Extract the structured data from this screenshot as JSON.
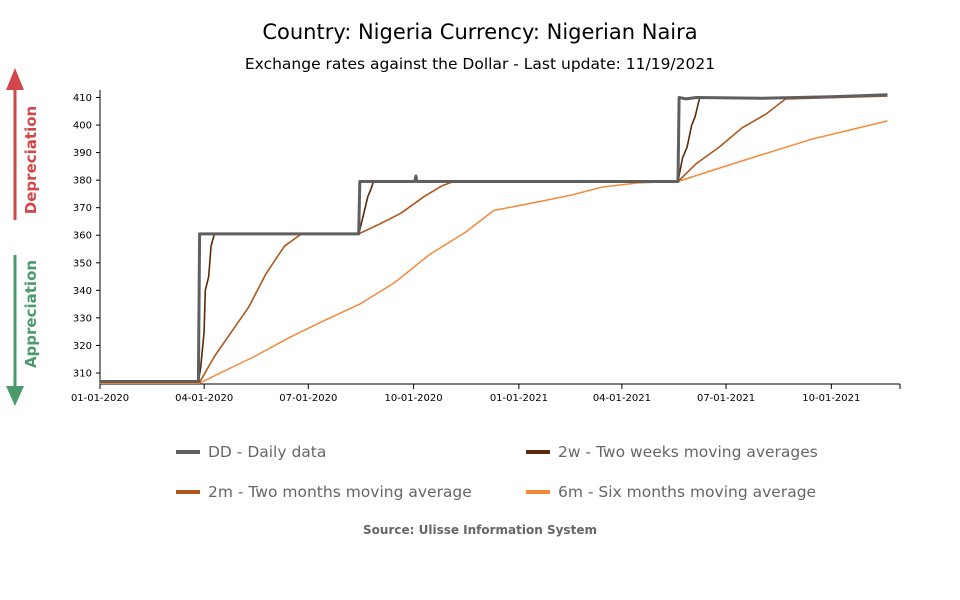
{
  "title": "Country: Nigeria Currency: Nigerian Naira",
  "subtitle": "Exchange rates against the Dollar - Last update: 11/19/2021",
  "side_labels": {
    "up": "Depreciation",
    "down": "Appreciation"
  },
  "colors": {
    "up": "#d2484a",
    "down": "#4a9a6c"
  },
  "source": "Source: Ulisse Information System",
  "legend": [
    {
      "label": "DD - Daily data",
      "color": "#5f5f5f"
    },
    {
      "label": "2w - Two weeks moving averages",
      "color": "#5a2a0a"
    },
    {
      "label": "2m - Two months moving average",
      "color": "#b0561c"
    },
    {
      "label": "6m - Six months moving average",
      "color": "#f5883a"
    }
  ],
  "chart_data": {
    "type": "line",
    "x_ticks": [
      "01-01-2020",
      "04-01-2020",
      "07-01-2020",
      "10-01-2020",
      "01-01-2021",
      "04-01-2021",
      "07-01-2021",
      "10-01-2021"
    ],
    "y_ticks": [
      310,
      320,
      330,
      340,
      350,
      360,
      370,
      380,
      390,
      400,
      410
    ],
    "xlim": [
      "2020-01-01",
      "2021-11-30"
    ],
    "ylim": [
      306,
      412
    ],
    "grid": false,
    "series": [
      {
        "name": "DD - Daily data",
        "color": "#5f5f5f",
        "points": [
          [
            "2020-01-01",
            306.9
          ],
          [
            "2020-03-27",
            306.9
          ],
          [
            "2020-03-28",
            360.5
          ],
          [
            "2020-08-14",
            360.5
          ],
          [
            "2020-08-15",
            379.5
          ],
          [
            "2020-10-02",
            379.5
          ],
          [
            "2020-10-03",
            381.5
          ],
          [
            "2020-10-04",
            379.5
          ],
          [
            "2021-05-20",
            379.5
          ],
          [
            "2021-05-21",
            410.0
          ],
          [
            "2021-05-27",
            409.5
          ],
          [
            "2021-06-05",
            410.0
          ],
          [
            "2021-08-01",
            409.7
          ],
          [
            "2021-10-01",
            410.3
          ],
          [
            "2021-11-19",
            411.0
          ]
        ]
      },
      {
        "name": "2w - Two weeks moving averages",
        "color": "#5a2a0a",
        "points": [
          [
            "2020-01-01",
            306.8
          ],
          [
            "2020-03-27",
            306.8
          ],
          [
            "2020-03-29",
            312
          ],
          [
            "2020-04-01",
            325
          ],
          [
            "2020-04-02",
            340
          ],
          [
            "2020-04-05",
            345
          ],
          [
            "2020-04-07",
            356
          ],
          [
            "2020-04-10",
            360.5
          ],
          [
            "2020-08-14",
            360.5
          ],
          [
            "2020-08-18",
            367
          ],
          [
            "2020-08-22",
            374
          ],
          [
            "2020-08-25",
            377
          ],
          [
            "2020-08-27",
            379.5
          ],
          [
            "2021-05-20",
            379.5
          ],
          [
            "2021-05-24",
            388
          ],
          [
            "2021-05-28",
            392
          ],
          [
            "2021-06-01",
            400
          ],
          [
            "2021-06-04",
            403
          ],
          [
            "2021-06-08",
            410
          ],
          [
            "2021-08-01",
            409.7
          ],
          [
            "2021-10-01",
            410.3
          ],
          [
            "2021-11-19",
            411.0
          ]
        ]
      },
      {
        "name": "2m - Two months moving average",
        "color": "#b0561c",
        "points": [
          [
            "2020-01-01",
            306.6
          ],
          [
            "2020-03-28",
            306.6
          ],
          [
            "2020-04-10",
            316
          ],
          [
            "2020-04-25",
            325
          ],
          [
            "2020-05-10",
            334
          ],
          [
            "2020-05-25",
            346
          ],
          [
            "2020-06-10",
            356
          ],
          [
            "2020-06-25",
            360.5
          ],
          [
            "2020-08-14",
            360.5
          ],
          [
            "2020-09-01",
            364
          ],
          [
            "2020-09-20",
            368
          ],
          [
            "2020-10-10",
            374
          ],
          [
            "2020-10-26",
            378
          ],
          [
            "2020-11-05",
            379.5
          ],
          [
            "2021-05-20",
            379.5
          ],
          [
            "2021-06-05",
            386
          ],
          [
            "2021-06-25",
            392
          ],
          [
            "2021-07-15",
            399
          ],
          [
            "2021-08-05",
            404
          ],
          [
            "2021-08-22",
            409.5
          ],
          [
            "2021-11-19",
            410.5
          ]
        ]
      },
      {
        "name": "6m - Six months moving average",
        "color": "#f5883a",
        "points": [
          [
            "2020-01-01",
            306.3
          ],
          [
            "2020-03-28",
            306.3
          ],
          [
            "2020-04-15",
            310
          ],
          [
            "2020-05-15",
            316
          ],
          [
            "2020-06-15",
            323
          ],
          [
            "2020-07-15",
            329
          ],
          [
            "2020-08-15",
            335
          ],
          [
            "2020-09-15",
            343
          ],
          [
            "2020-10-15",
            353
          ],
          [
            "2020-11-15",
            361
          ],
          [
            "2020-12-10",
            369
          ],
          [
            "2021-01-10",
            371.5
          ],
          [
            "2021-02-15",
            374.5
          ],
          [
            "2021-03-15",
            377.5
          ],
          [
            "2021-04-15",
            379.0
          ],
          [
            "2021-05-20",
            379.5
          ],
          [
            "2021-06-15",
            383
          ],
          [
            "2021-07-15",
            387
          ],
          [
            "2021-08-15",
            391
          ],
          [
            "2021-09-15",
            395
          ],
          [
            "2021-10-15",
            398
          ],
          [
            "2021-11-19",
            401.5
          ]
        ]
      }
    ]
  }
}
